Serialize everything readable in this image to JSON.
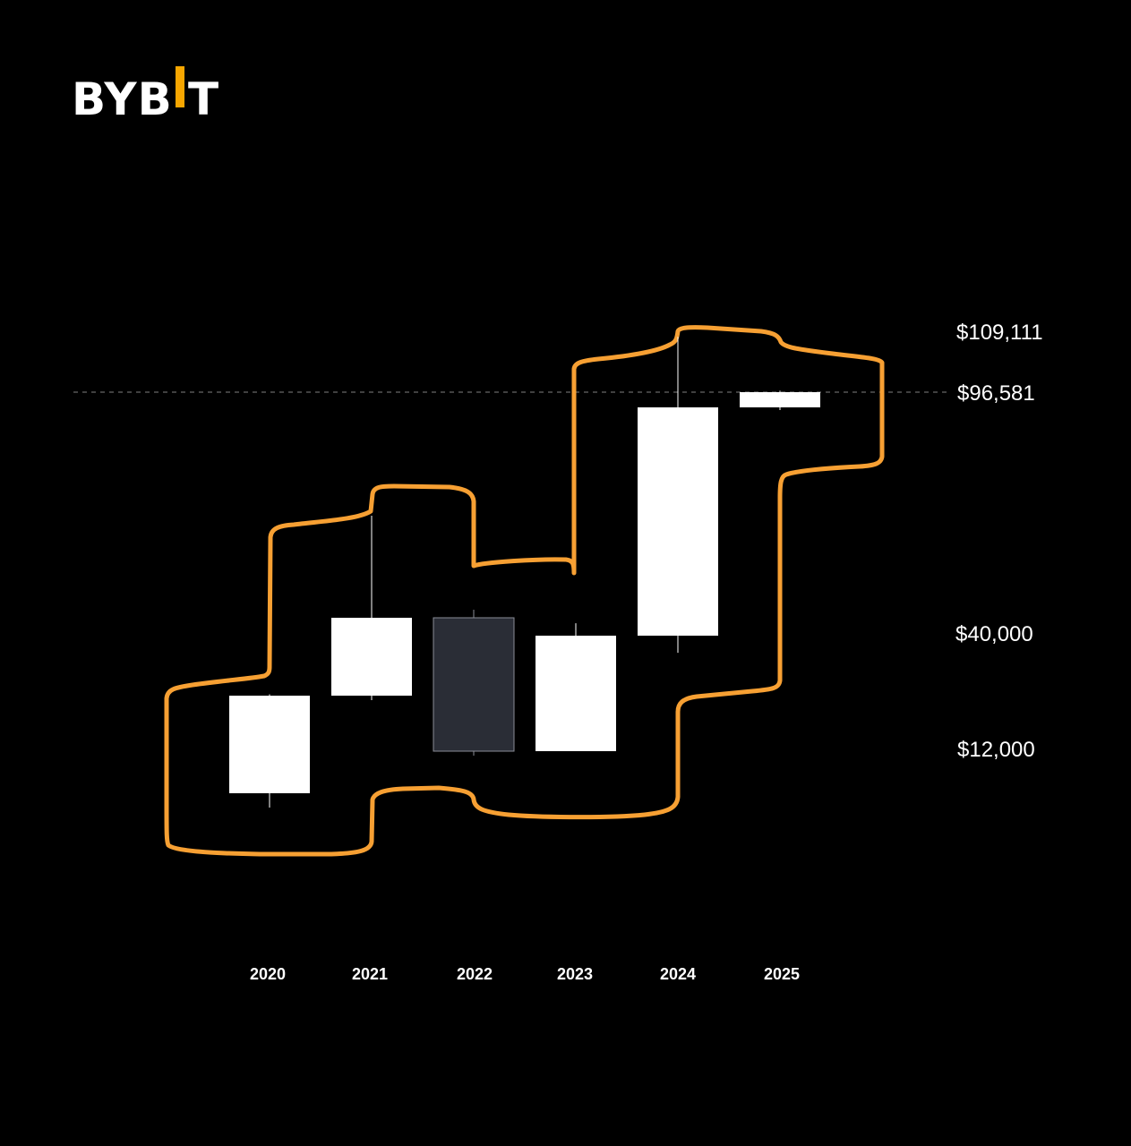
{
  "brand": {
    "text_left": "BYB",
    "text_right": "T",
    "i_bar_color": "#F7A600",
    "text_color": "#FFFFFF"
  },
  "colors": {
    "background": "#000000",
    "candle_up": "#FFFFFF",
    "candle_down": "#2A2D36",
    "candle_down_border": "#8A8D96",
    "outline": "#F7A033",
    "reference_line": "#555555"
  },
  "chart_data": {
    "type": "candlestick",
    "title": "",
    "xlabel": "",
    "ylabel": "",
    "categories": [
      "2020",
      "2021",
      "2022",
      "2023",
      "2024",
      "2025"
    ],
    "candles": [
      {
        "year": "2020",
        "open": 7200,
        "close": 29000,
        "high": 29300,
        "low": 3900,
        "direction": "up"
      },
      {
        "year": "2021",
        "open": 29000,
        "close": 46200,
        "high": 69000,
        "low": 28000,
        "direction": "up"
      },
      {
        "year": "2022",
        "open": 46200,
        "close": 16500,
        "high": 48000,
        "low": 15500,
        "direction": "down"
      },
      {
        "year": "2023",
        "open": 16500,
        "close": 42300,
        "high": 45000,
        "low": 16500,
        "direction": "up"
      },
      {
        "year": "2024",
        "open": 42300,
        "close": 93400,
        "high": 108300,
        "low": 38500,
        "direction": "up"
      },
      {
        "year": "2025",
        "open": 93400,
        "close": 96581,
        "high": 96900,
        "low": 92800,
        "direction": "up"
      }
    ],
    "price_labels": [
      {
        "text": "$109,111",
        "value": 109111
      },
      {
        "text": "$96,581",
        "value": 96581
      },
      {
        "text": "$40,000",
        "value": 40000
      },
      {
        "text": "$12,000",
        "value": 12000
      }
    ],
    "reference_line": {
      "value": 96581,
      "style": "dashed"
    },
    "annotation": "hand-drawn orange outline enclosing all candles",
    "grid": false,
    "legend": "none"
  }
}
